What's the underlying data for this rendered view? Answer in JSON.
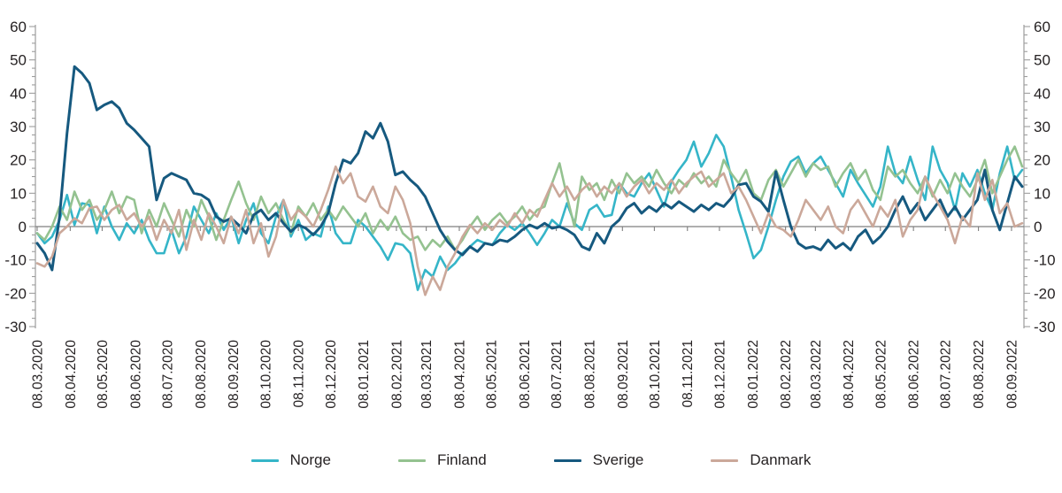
{
  "chart_data": {
    "type": "line",
    "title": "",
    "x_unit": "weekly observations",
    "x_tick_labels": [
      "08.03.2020",
      "08.04.2020",
      "08.05.2020",
      "08.06.2020",
      "08.07.2020",
      "08.08.2020",
      "08.09.2020",
      "08.10.2020",
      "08.11.2020",
      "08.12.2020",
      "08.01.2021",
      "08.02.2021",
      "08.03.2021",
      "08.04.2021",
      "08.05.2021",
      "08.06.2021",
      "08.07.2021",
      "08.08.2021",
      "08.09.2021",
      "08.10.2021",
      "08.11.2021",
      "08.12.2021",
      "08.01.2022",
      "08.02.2022",
      "08.03.2022",
      "08.04.2022",
      "08.05.2022",
      "08.06.2022",
      "08.07.2022",
      "08.08.2022",
      "08.09.2022"
    ],
    "x_tick_week_positions": [
      0,
      4.43,
      8.71,
      13.14,
      17.43,
      21.86,
      26.29,
      30.57,
      35,
      39.29,
      43.71,
      48.14,
      52.14,
      56.57,
      60.86,
      65.29,
      69.57,
      74,
      78.43,
      82.71,
      87.14,
      91.43,
      95.86,
      100.29,
      104.29,
      108.71,
      113,
      117.43,
      121.71,
      126.14,
      130.57
    ],
    "x_total_weeks": 132,
    "ylim": [
      -30,
      60
    ],
    "y_major_tick_step": 10,
    "y_minor_tick_step": 2.5,
    "dual_y_axis": true,
    "zero_line": true,
    "grid": false,
    "legend_position": "bottom",
    "colors": {
      "axis": "#9d9d9d",
      "zero_line": "#7f7f7f",
      "text": "#262223"
    },
    "series": [
      {
        "name": "Norge",
        "color": "#35b5c8",
        "width": 2.6,
        "values": [
          -2,
          -5,
          -3,
          2,
          9.5,
          0.5,
          7,
          6.5,
          -2,
          6,
          0,
          -4,
          1,
          -2,
          2,
          -4,
          -8,
          -8,
          -1,
          -8,
          -3,
          6,
          2,
          -2,
          4,
          -1,
          3,
          -5,
          2,
          7,
          -2,
          -5,
          3,
          8,
          -3,
          2,
          -4,
          -2,
          -3,
          6,
          -2,
          -5,
          -5,
          2,
          0,
          -3,
          -6,
          -10,
          -5,
          -5.5,
          -8,
          -19,
          -13,
          -15,
          -9,
          -13,
          -11,
          -8,
          -6,
          -4,
          -5,
          -5.5,
          -2,
          0.5,
          -1,
          1,
          -2,
          -5.5,
          -2,
          2,
          0,
          7,
          1,
          -1,
          5,
          6.5,
          3,
          3.5,
          13,
          10,
          9,
          13,
          16,
          11,
          6,
          13.5,
          17,
          20,
          25.5,
          18,
          22,
          27.5,
          24,
          15,
          5,
          -2,
          -9.5,
          -7,
          0,
          8,
          15,
          19.5,
          21,
          16,
          19,
          21,
          17,
          13,
          9,
          17,
          13,
          9.5,
          6,
          12,
          24,
          16,
          13,
          21,
          14,
          8,
          24,
          17,
          13,
          5,
          16,
          12,
          17,
          10,
          5,
          16,
          24,
          14,
          17
        ]
      },
      {
        "name": "Finland",
        "color": "#94c290",
        "width": 2.6,
        "values": [
          -2,
          -4,
          0,
          6,
          2,
          10.5,
          5,
          8,
          2,
          5,
          10.5,
          4,
          9,
          8,
          -2,
          5,
          0,
          7,
          2,
          -3,
          5,
          0,
          8,
          3,
          -4,
          2,
          8,
          13.5,
          7,
          2,
          9,
          4,
          7,
          2,
          -2,
          6,
          3,
          7,
          2,
          5,
          2,
          6,
          3,
          0,
          4,
          -2,
          2,
          -1,
          3,
          -2,
          -4,
          -3,
          -7,
          -4,
          -6,
          -3,
          -7,
          -4,
          0,
          3,
          -1,
          2,
          4,
          1,
          3,
          6,
          2,
          5,
          6,
          13,
          19,
          9,
          0,
          15,
          11,
          13,
          8,
          14,
          10,
          16,
          13,
          15,
          12,
          17,
          13,
          10,
          14,
          12,
          16,
          13,
          15,
          12,
          20,
          16,
          13,
          17,
          10,
          8,
          14,
          17,
          12,
          16,
          20,
          15,
          19,
          17,
          18,
          12,
          16,
          19,
          14,
          17,
          11,
          8,
          18,
          15,
          17,
          13,
          10,
          15,
          9,
          14,
          10,
          16,
          12,
          9,
          14,
          20,
          10,
          15,
          20,
          24,
          18
        ]
      },
      {
        "name": "Sverige",
        "color": "#16597f",
        "width": 3,
        "values": [
          -5,
          -8,
          -13,
          3,
          28,
          48,
          46,
          43,
          35,
          36.5,
          37.5,
          35.5,
          31,
          29,
          26.5,
          24,
          8,
          14.5,
          16,
          15,
          14,
          10,
          9.5,
          8,
          3,
          1.5,
          2.5,
          0.5,
          -2,
          3.5,
          5,
          2,
          4,
          1,
          -1.5,
          0.5,
          -0.5,
          -2.5,
          0,
          4,
          13,
          20,
          19,
          22,
          28.5,
          26.5,
          31,
          25.5,
          15.5,
          16.5,
          14,
          12,
          9,
          4,
          -1,
          -4.5,
          -7,
          -8.5,
          -6,
          -7.5,
          -5,
          -5.5,
          -4,
          -4.5,
          -3,
          -1,
          0.5,
          -0.5,
          1,
          -0.5,
          0,
          -1,
          -2.5,
          -6,
          -7,
          -2,
          -5,
          0,
          2,
          5.5,
          7,
          4,
          6,
          4.5,
          7,
          5.5,
          7.5,
          6,
          4.5,
          6.5,
          5,
          7,
          6,
          8.5,
          12.5,
          13,
          9,
          7.5,
          4.5,
          16.5,
          8,
          0,
          -5,
          -6.5,
          -6,
          -7,
          -4,
          -6.5,
          -5,
          -7,
          -3,
          -1,
          -5,
          -3,
          0,
          5,
          9,
          4,
          7,
          2,
          5,
          8,
          3,
          6,
          2,
          5,
          8,
          17,
          5,
          -1,
          7,
          15,
          12
        ]
      },
      {
        "name": "Danmark",
        "color": "#cba89a",
        "width": 2.6,
        "values": [
          -11,
          -12,
          -9,
          -2,
          0,
          2.5,
          1,
          5.5,
          6,
          2,
          5,
          6.5,
          2,
          4,
          0,
          3,
          -4,
          2,
          -2,
          5,
          -7,
          2,
          -4,
          4,
          0,
          -5,
          3,
          -2,
          5,
          -5,
          1,
          -9,
          -3,
          8,
          2,
          5,
          3,
          0,
          5,
          11,
          18,
          13,
          16,
          9,
          7.5,
          12,
          6,
          4,
          12,
          8,
          1,
          -12,
          -20.5,
          -15,
          -19,
          -12,
          -8,
          -3,
          0.5,
          -2,
          1,
          -1,
          2,
          0,
          4,
          1,
          5,
          3,
          8,
          13,
          9,
          12,
          8,
          11,
          13,
          9,
          12,
          10,
          13,
          9,
          12,
          14,
          10,
          13,
          11,
          14,
          10,
          13,
          15,
          16.5,
          12,
          14,
          16,
          10,
          12,
          8,
          3,
          -2,
          4,
          0,
          -1,
          -3,
          2,
          8,
          5,
          2,
          6,
          0,
          -2,
          5,
          8,
          4,
          0,
          6,
          3,
          8,
          -3,
          2,
          5,
          15,
          10,
          6,
          2,
          -5,
          3,
          0,
          16,
          8,
          14,
          4,
          7,
          0,
          1
        ]
      }
    ]
  },
  "legend": {
    "items": [
      {
        "label": "Norge"
      },
      {
        "label": "Finland"
      },
      {
        "label": "Sverige"
      },
      {
        "label": "Danmark"
      }
    ]
  }
}
